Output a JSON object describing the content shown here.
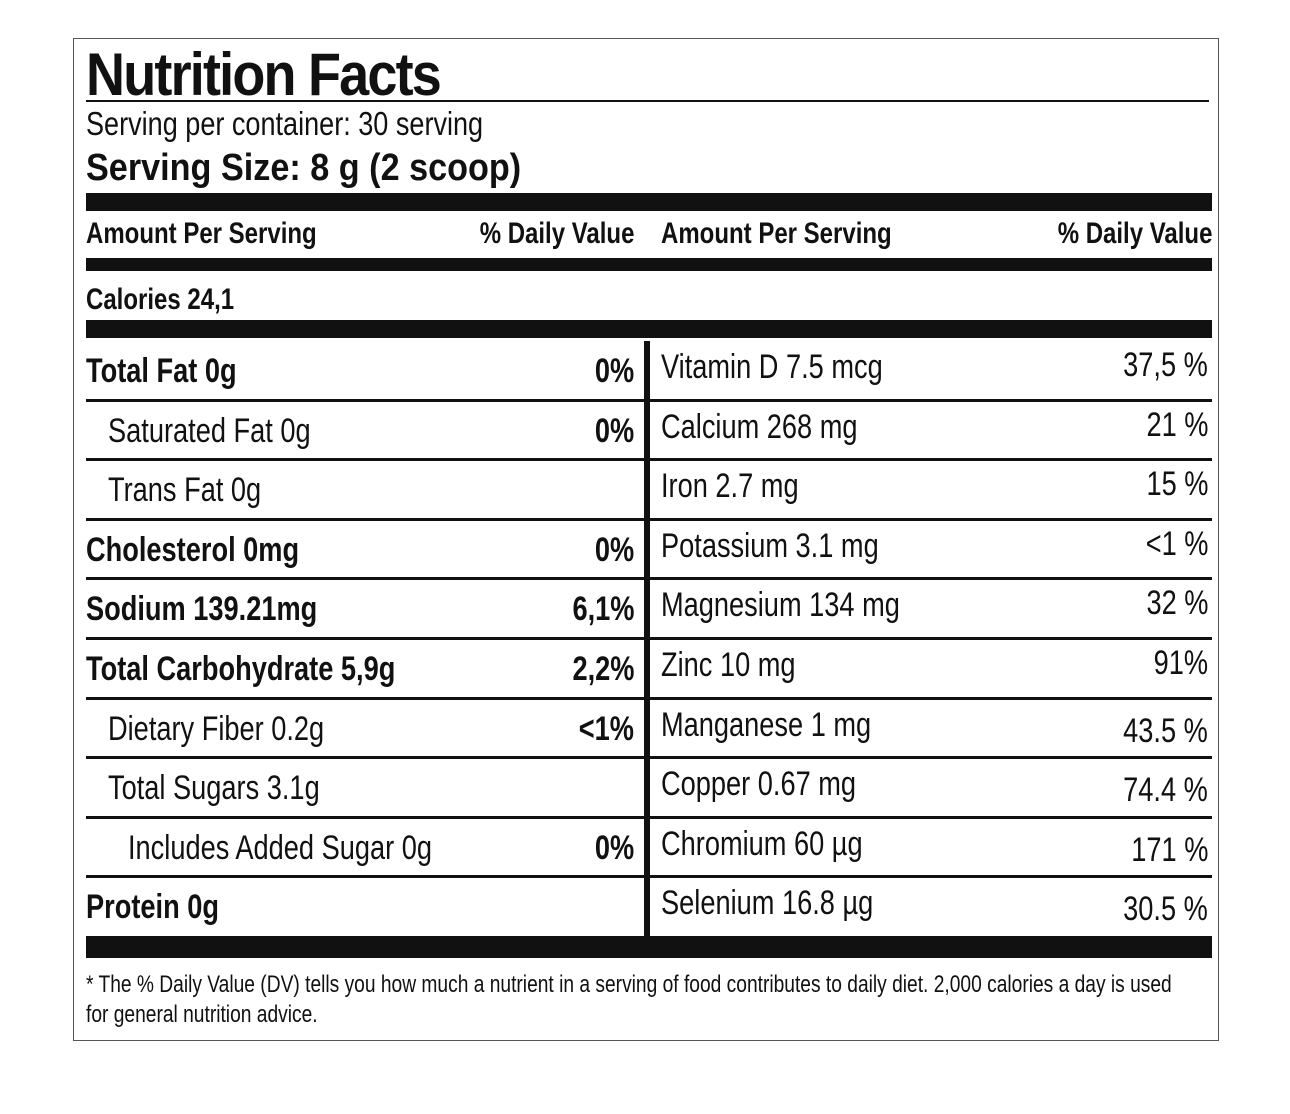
{
  "title": "Nutrition Facts",
  "serving_per_container": "Serving per container: 30 serving",
  "serving_size": "Serving Size: 8 g (2 scoop)",
  "header": {
    "left_amount": "Amount Per Serving",
    "left_dv": "% Daily Value",
    "right_amount": "Amount Per Serving",
    "right_dv": "% Daily Value"
  },
  "calories": "Calories 24,1",
  "left_rows": [
    {
      "label": "Total Fat 0g",
      "dv": "0%"
    },
    {
      "label": "Saturated Fat 0g",
      "dv": "0%"
    },
    {
      "label": "Trans Fat 0g",
      "dv": ""
    },
    {
      "label": "Cholesterol 0mg",
      "dv": "0%"
    },
    {
      "label": "Sodium 139.21mg",
      "dv": "6,1%"
    },
    {
      "label": "Total Carbohydrate 5,9g",
      "dv": "2,2%"
    },
    {
      "label": "Dietary Fiber 0.2g",
      "dv": "<1%"
    },
    {
      "label": "Total Sugars 3.1g",
      "dv": ""
    },
    {
      "label": "Includes Added Sugar 0g",
      "dv": "0%"
    },
    {
      "label": "Protein 0g",
      "dv": ""
    }
  ],
  "right_rows": [
    {
      "label": "Vitamin D 7.5 mcg",
      "dv": "37,5 %"
    },
    {
      "label": "Calcium 268 mg",
      "dv": "21 %"
    },
    {
      "label": "Iron 2.7 mg",
      "dv": "15 %"
    },
    {
      "label": "Potassium 3.1 mg",
      "dv": "<1 %"
    },
    {
      "label": "Magnesium 134 mg",
      "dv": "32 %"
    },
    {
      "label": "Zinc 10 mg",
      "dv": "91%"
    },
    {
      "label": "Manganese 1 mg",
      "dv": "43.5 %"
    },
    {
      "label": "Copper 0.67 mg",
      "dv": "74.4 %"
    },
    {
      "label": "Chromium 60 µg",
      "dv": "171 %"
    },
    {
      "label": "Selenium 16.8 µg",
      "dv": "30.5 %"
    }
  ],
  "footnote": "* The % Daily Value (DV) tells you how much a nutrient in a serving of food contributes to daily diet. 2,000 calories a day is used for general nutrition advice."
}
